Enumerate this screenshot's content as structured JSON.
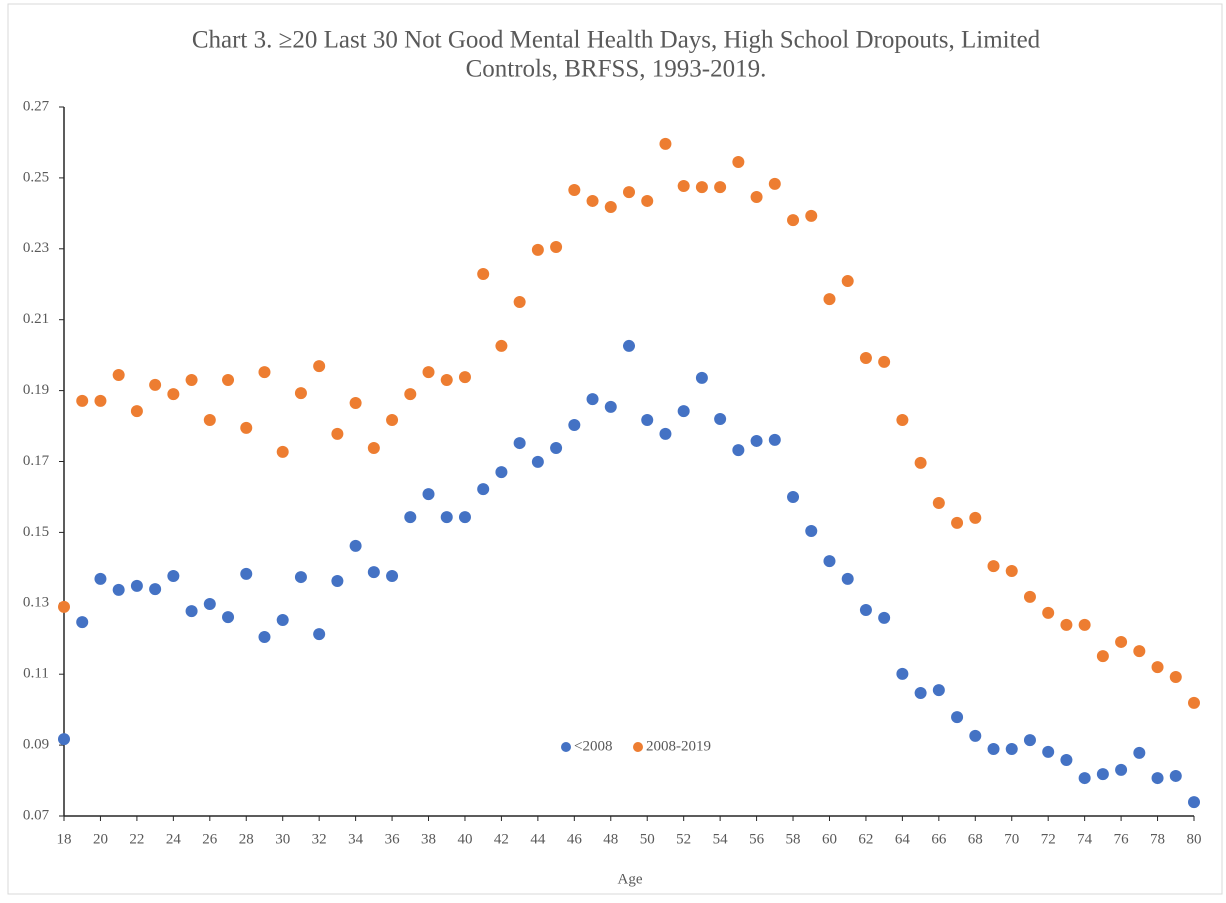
{
  "chart_data": {
    "type": "scatter",
    "title": [
      "Chart 3. ≥20 Last 30 Not Good Mental Health Days, High School Dropouts, Limited",
      "Controls, BRFSS, 1993-2019."
    ],
    "x_label": "Age",
    "x": [
      18,
      19,
      20,
      21,
      22,
      23,
      24,
      25,
      26,
      27,
      28,
      29,
      30,
      31,
      32,
      33,
      34,
      35,
      36,
      37,
      38,
      39,
      40,
      41,
      42,
      43,
      44,
      45,
      46,
      47,
      48,
      49,
      50,
      51,
      52,
      53,
      54,
      55,
      56,
      57,
      58,
      59,
      60,
      61,
      62,
      63,
      64,
      65,
      66,
      67,
      68,
      69,
      70,
      71,
      72,
      73,
      74,
      75,
      76,
      77,
      78,
      79,
      80
    ],
    "series": [
      {
        "name": "<2008",
        "color": "#4472c4",
        "values": [
          0.0917,
          0.1247,
          0.1369,
          0.1338,
          0.1349,
          0.134,
          0.1377,
          0.1278,
          0.1298,
          0.1261,
          0.1383,
          0.1205,
          0.1253,
          0.1374,
          0.1213,
          0.1363,
          0.1462,
          0.1388,
          0.1377,
          0.1543,
          0.1608,
          0.1543,
          0.1543,
          0.1622,
          0.167,
          0.1752,
          0.1699,
          0.1738,
          0.1803,
          0.1876,
          0.1854,
          0.2026,
          0.1817,
          0.1778,
          0.1842,
          0.1936,
          0.182,
          0.1732,
          0.1758,
          0.1761,
          0.16,
          0.1504,
          0.1419,
          0.1369,
          0.1281,
          0.1259,
          0.1101,
          0.1047,
          0.1055,
          0.0979,
          0.0926,
          0.0889,
          0.0889,
          0.0914,
          0.0881,
          0.0858,
          0.0807,
          0.0818,
          0.083,
          0.0878,
          0.0807,
          0.0813,
          0.0739
        ]
      },
      {
        "name": "2008-2019",
        "color": "#ed7d31",
        "values": [
          0.129,
          0.1871,
          0.1871,
          0.1944,
          0.1842,
          0.1916,
          0.189,
          0.193,
          0.1817,
          0.193,
          0.1795,
          0.1952,
          0.1727,
          0.1893,
          0.1969,
          0.1778,
          0.1865,
          0.1738,
          0.1817,
          0.189,
          0.1952,
          0.193,
          0.1938,
          0.2229,
          0.2026,
          0.215,
          0.2297,
          0.2305,
          0.2466,
          0.2435,
          0.2418,
          0.246,
          0.2435,
          0.2596,
          0.2477,
          0.2474,
          0.2474,
          0.2545,
          0.2446,
          0.2483,
          0.2381,
          0.2393,
          0.2158,
          0.2209,
          0.1992,
          0.1981,
          0.1817,
          0.1696,
          0.1583,
          0.1527,
          0.1541,
          0.1405,
          0.1391,
          0.1318,
          0.1273,
          0.1239,
          0.1239,
          0.1151,
          0.1191,
          0.1165,
          0.112,
          0.1092,
          0.1019
        ]
      }
    ],
    "xlim": [
      18,
      80
    ],
    "xticks": [
      18,
      20,
      22,
      24,
      26,
      28,
      30,
      32,
      34,
      36,
      38,
      40,
      42,
      44,
      46,
      48,
      50,
      52,
      54,
      56,
      58,
      60,
      62,
      64,
      66,
      68,
      70,
      72,
      74,
      76,
      78,
      80
    ],
    "ylim": [
      0.07,
      0.27
    ],
    "yticks": [
      0.07,
      0.09,
      0.11,
      0.13,
      0.15,
      0.17,
      0.19,
      0.21,
      0.23,
      0.25,
      0.27
    ],
    "grid": false,
    "legend": "lower center"
  }
}
